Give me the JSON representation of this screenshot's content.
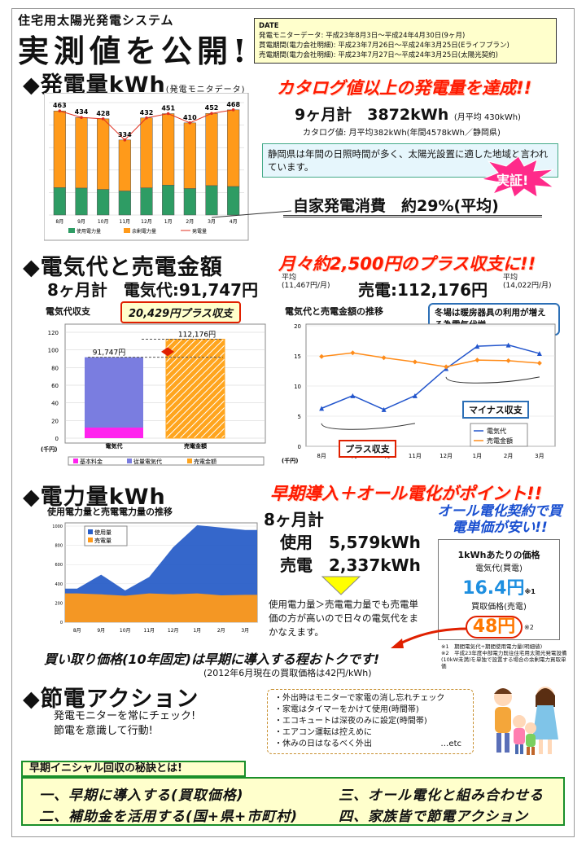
{
  "header": {
    "subtitle": "住宅用太陽光発電システム",
    "title": "実測値を公開!!"
  },
  "date_box": {
    "label": "DATE",
    "lines": [
      "発電モニターデータ: 平成23年8月3日～平成24年4月30日(9ヶ月)",
      "買電期間(電力会社明細): 平成23年7月26日～平成24年3月25日(Eライフプラン)",
      "売電期間(電力会社明細): 平成23年7月27日～平成24年3月25日(太陽光契約)"
    ]
  },
  "section1": {
    "title": "◆発電量kWh",
    "title_note": "(発電モニタデータ)",
    "headline": "カタログ値以上の発電量を達成!!",
    "total_label": "9ヶ月計　3872kWh",
    "total_note": "(月平均 430kWh)",
    "catalog_note": "カタログ値: 月平均382kWh(年間4578kWh／静岡県)",
    "info": "静岡県は年間の日照時間が多く、太陽光設置に適した地域と言われています。",
    "burst": "実証!",
    "self_use": "自家発電消費　約29%(平均)"
  },
  "section2": {
    "title": "◆電気代と売電金額",
    "headline": "月々約2,500円のプラス収支に!!",
    "summary_left": "8ヶ月計　電気代:91,747円",
    "avg_left_label": "平均",
    "avg_left": "(11,467円/月)",
    "summary_right": "売電:112,176円",
    "avg_right_label": "平均",
    "avg_right": "(14,022円/月)",
    "bar_title": "電気代収支",
    "plus_label": "20,429円プラス収支",
    "line_title": "電気代と売電金額の推移",
    "winter_note": "冬場は暖房器具の利用が増える為電気代増",
    "minus_label": "マイナス収支",
    "plus_bracket": "プラス収支"
  },
  "section3": {
    "title": "◆電力量kWh",
    "headline": "早期導入＋オール電化がポイント!!",
    "chart_title": "使用電力量と売電電力量の推移",
    "total_label": "8ヶ月計",
    "use_label": "使用　5,579kWh",
    "sell_label": "売電　2,337kWh",
    "explain": "使用電力量＞売電電力量でも売電単価の方が高いので日々の電気代をまかなえます。",
    "allelec": "オール電化契約で買電単価が安い!!",
    "price_title": "1kWhあたりの価格",
    "buy_label": "電気代(買電)",
    "buy_price": "16.4円",
    "buy_note": "※1",
    "sell_label2": "買取価格(売電)",
    "sell_price": "48円",
    "sell_note": "※2",
    "footnote1": "※1　期間電気代÷期間使用電力量(明細値)",
    "footnote2": "※2　平成23年度中部電力既往住宅用太陽光発電設備(10kW未満)を単独で設置する場合の余剰電力買取単価",
    "bottom_head": "買い取り価格(10年固定)は早期に導入する程おトクです!",
    "bottom_note": "(2012年6月現在の買取価格は42円/kWh)"
  },
  "section4": {
    "title": "◆節電アクション",
    "lead1": "発電モニターを常にチェック!",
    "lead2": "節電を意識して行動!",
    "items": [
      "・外出時はモニターで家電の消し忘れチェック",
      "・家電はタイマーをかけて使用(時間帯)",
      "・エコキュートは深夜のみに設定(時間帯)",
      "・エアコン運転は控えめに",
      "・休みの日はなるべく外出"
    ],
    "etc": "…etc"
  },
  "secrets": {
    "title": "早期イニシャル回収の秘訣とは!",
    "s1": "一、早期に導入する(買取価格)",
    "s2": "二、補助金を活用する(国+県+市町村)",
    "s3": "三、オール電化と組み合わせる",
    "s4": "四、家族皆で節電アクション"
  },
  "chart_data": [
    {
      "type": "bar",
      "stacked": true,
      "categories": [
        "8月",
        "9月",
        "10月",
        "11月",
        "12月",
        "1月",
        "2月",
        "3月",
        "4月"
      ],
      "series": [
        {
          "name": "使用電力量",
          "color": "#2e9c64",
          "values": [
            122,
            120,
            114,
            107,
            121,
            133,
            118,
            131,
            127
          ]
        },
        {
          "name": "余剰電力量",
          "color": "#ff9a1a",
          "values": [
            341,
            314,
            314,
            227,
            311,
            318,
            292,
            321,
            341
          ]
        },
        {
          "name": "発電量",
          "type": "line",
          "color": "#e03020",
          "values": [
            463,
            434,
            428,
            334,
            432,
            451,
            410,
            452,
            468
          ]
        }
      ],
      "data_labels": [
        "463",
        "434",
        "428",
        "334",
        "432",
        "451",
        "410",
        "452",
        "468"
      ],
      "legend": [
        "使用電力量",
        "余剰電力量",
        "発電量"
      ]
    },
    {
      "type": "bar",
      "title": "電気代収支",
      "ylabel": "(千円)",
      "ylim": [
        0,
        120
      ],
      "yticks": [
        "0",
        "20",
        "40",
        "60",
        "80",
        "100",
        "120"
      ],
      "categories": [
        "電気代",
        "売電金額"
      ],
      "series": [
        {
          "name": "基本料金",
          "color": "#ff22ee",
          "values": [
            12,
            0
          ]
        },
        {
          "name": "従量電気代",
          "color": "#7a7de0",
          "values": [
            79.747,
            0
          ]
        },
        {
          "name": "売電金額",
          "color": "#ffa51e",
          "values": [
            0,
            112.176
          ]
        }
      ],
      "data_labels": [
        "91,747円",
        "112,176円"
      ],
      "legend": [
        "基本料金",
        "従量電気代",
        "売電金額"
      ]
    },
    {
      "type": "line",
      "title": "電気代と売電金額の推移",
      "ylabel": "(千円)",
      "ylim": [
        0,
        20
      ],
      "yticks": [
        "0",
        "5",
        "10",
        "15",
        "20"
      ],
      "categories": [
        "8月",
        "9月",
        "10月",
        "11月",
        "12月",
        "1月",
        "2月",
        "3月"
      ],
      "series": [
        {
          "name": "電気代",
          "color": "#2255cc",
          "marker": "triangle",
          "values": [
            6.3,
            8.4,
            6.1,
            8.4,
            12.9,
            16.6,
            16.8,
            15.4
          ]
        },
        {
          "name": "売電金額",
          "color": "#ff8c1a",
          "marker": "diamond",
          "values": [
            14.9,
            15.5,
            14.7,
            14.0,
            13.2,
            14.3,
            14.2,
            13.8
          ]
        }
      ]
    },
    {
      "type": "area",
      "title": "使用電力量と売電電力量の推移",
      "ylim": [
        0,
        1000
      ],
      "yticks": [
        "0",
        "200",
        "400",
        "600",
        "800",
        "1000"
      ],
      "categories": [
        "8月",
        "9月",
        "10月",
        "11月",
        "12月",
        "1月",
        "2月",
        "3月"
      ],
      "series": [
        {
          "name": "使用量",
          "color": "#2a5fc8",
          "values": [
            350,
            495,
            330,
            470,
            780,
            1010,
            985,
            960
          ]
        },
        {
          "name": "売電量",
          "color": "#ff9a1a",
          "values": [
            300,
            290,
            275,
            300,
            290,
            300,
            280,
            285
          ]
        }
      ],
      "legend": [
        "使用量",
        "売電量"
      ]
    }
  ]
}
